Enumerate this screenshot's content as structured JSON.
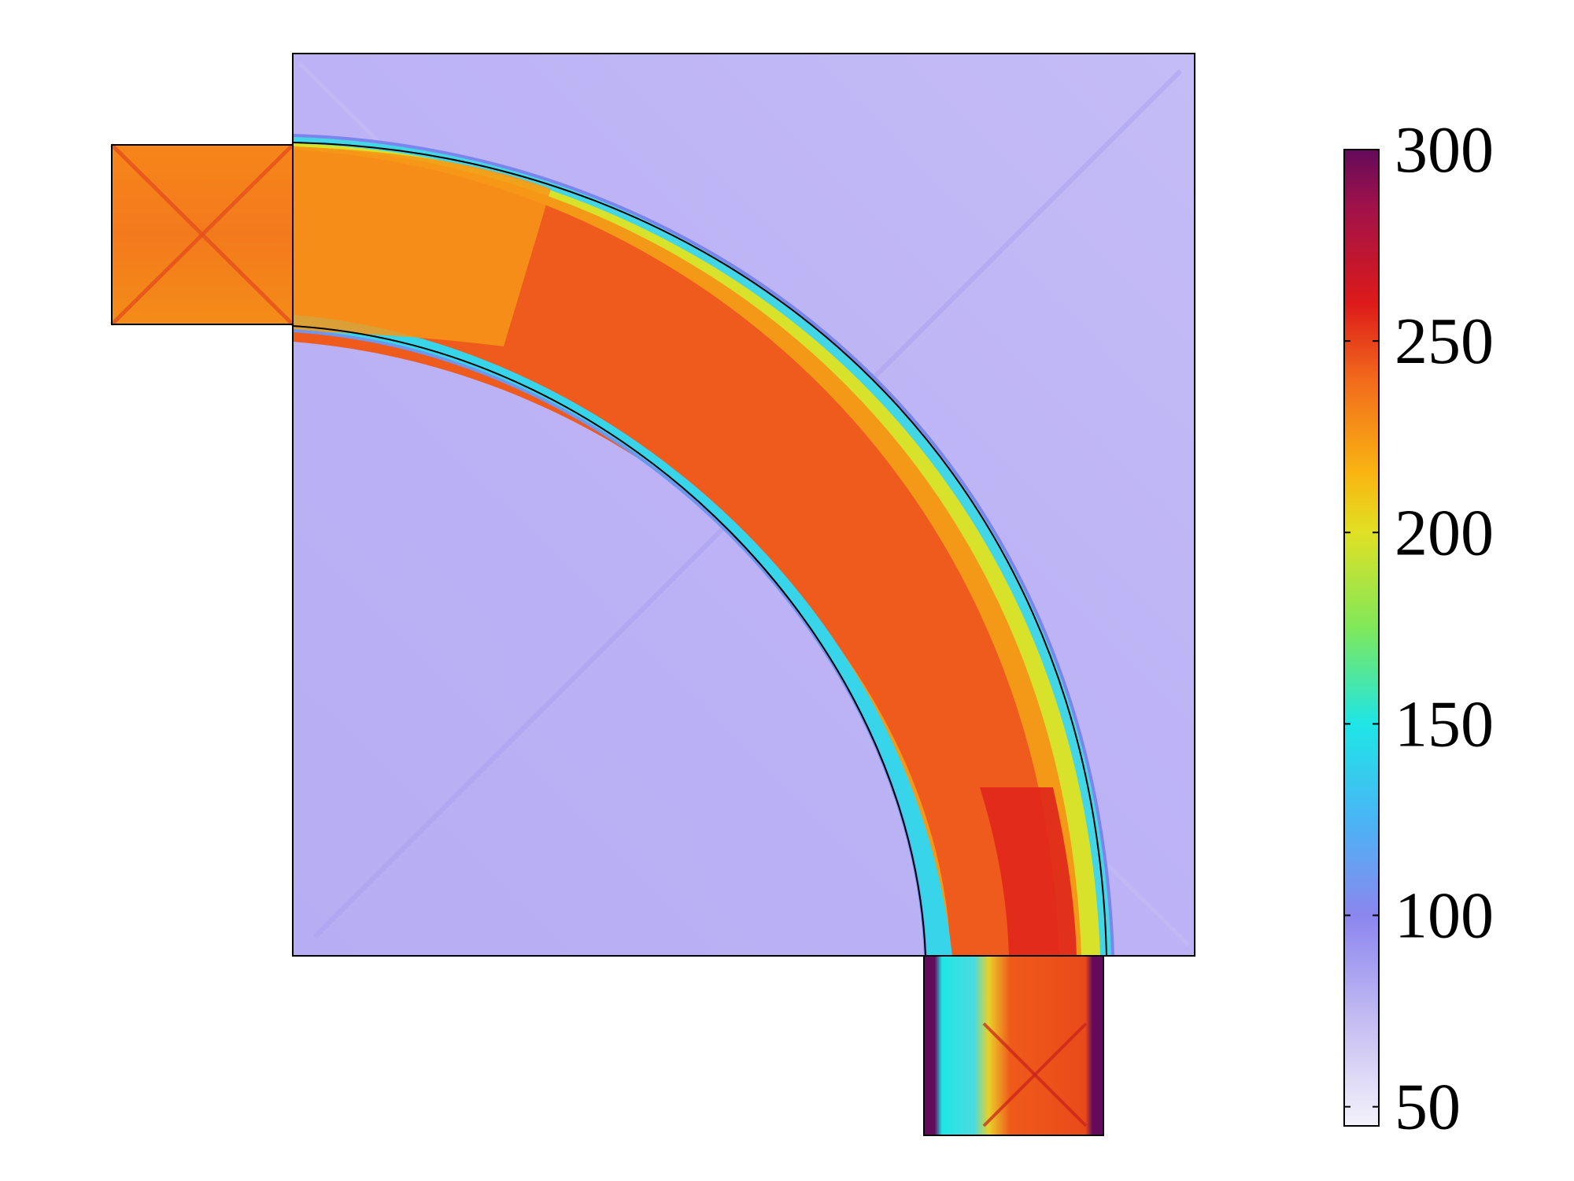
{
  "colorbar": {
    "ticks": [
      {
        "value": 300,
        "label": "300"
      },
      {
        "value": 250,
        "label": "250"
      },
      {
        "value": 200,
        "label": "200"
      },
      {
        "value": 150,
        "label": "150"
      },
      {
        "value": 100,
        "label": "100"
      },
      {
        "value": 50,
        "label": "50"
      }
    ],
    "min": 45,
    "max": 300,
    "stops": [
      {
        "value": 45,
        "color": "#f4f2fb"
      },
      {
        "value": 70,
        "color": "#c9c1f2"
      },
      {
        "value": 100,
        "color": "#8b86ef"
      },
      {
        "value": 125,
        "color": "#49b5f5"
      },
      {
        "value": 150,
        "color": "#1ee6e6"
      },
      {
        "value": 175,
        "color": "#7fe85a"
      },
      {
        "value": 200,
        "color": "#e0e024"
      },
      {
        "value": 215,
        "color": "#f9b612"
      },
      {
        "value": 240,
        "color": "#f26a1b"
      },
      {
        "value": 260,
        "color": "#dd1a1a"
      },
      {
        "value": 285,
        "color": "#a0124a"
      },
      {
        "value": 300,
        "color": "#640a5a"
      }
    ]
  },
  "field": {
    "background_color": "#bdb3f5",
    "pipe_outer_color": "#f4e63a",
    "pipe_core_color": "#ef5520",
    "inlet_color": "#f4781c",
    "outlet_color": "#e8401a",
    "wall_color": "#640a5a"
  }
}
